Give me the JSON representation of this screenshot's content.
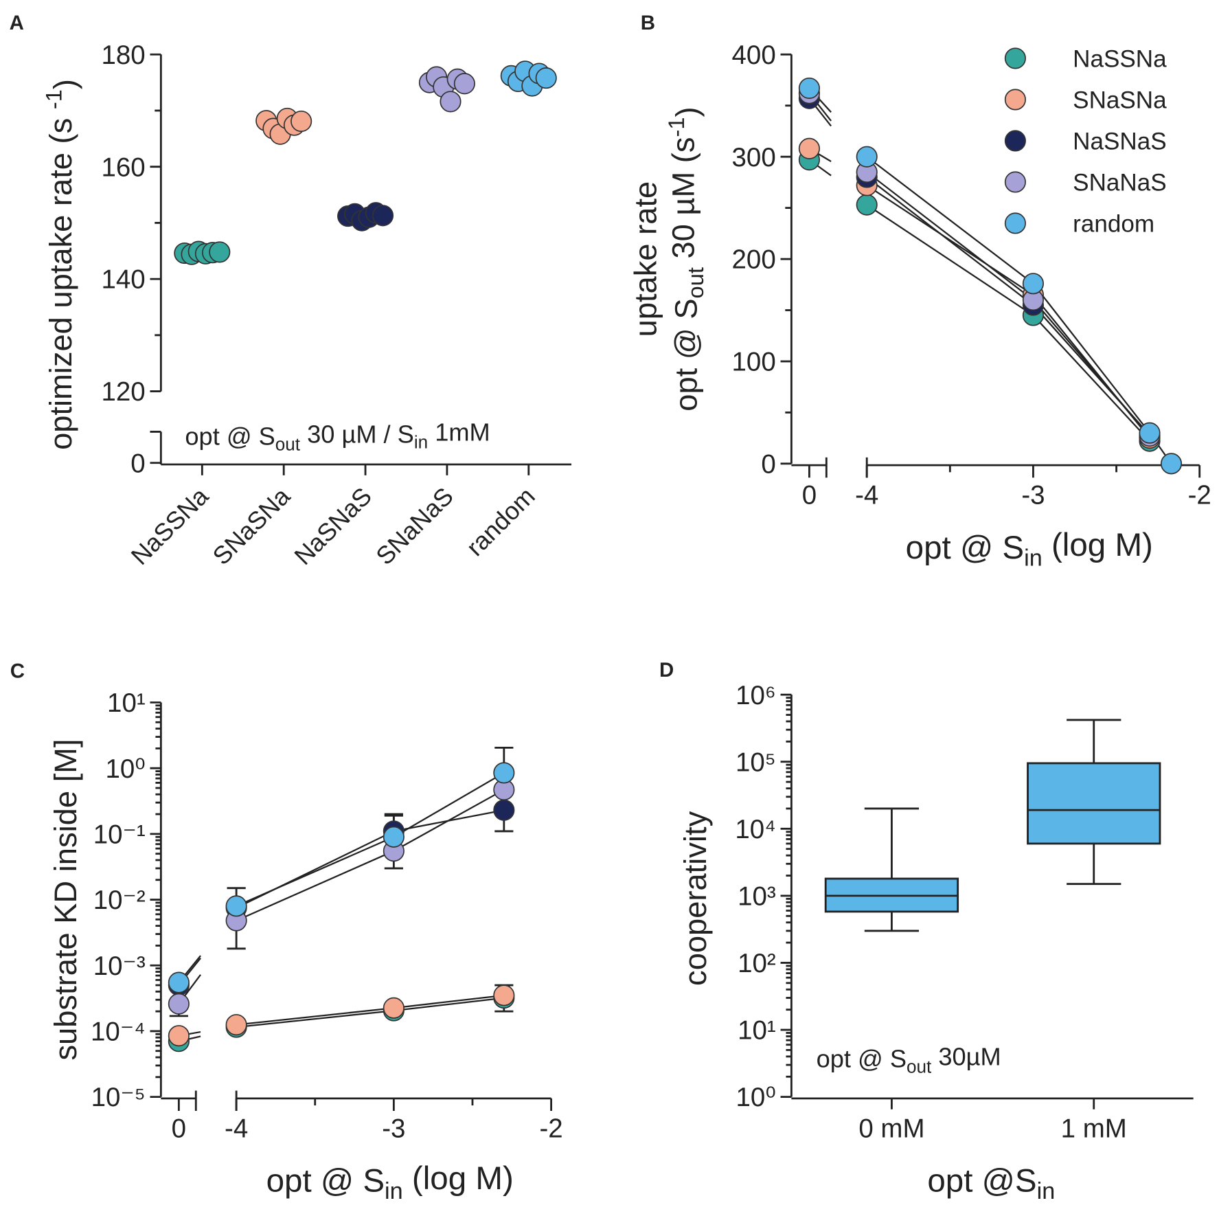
{
  "chart_data": [
    {
      "type": "strip",
      "label": "A",
      "categories": [
        "NaSSNa",
        "SNaSNa",
        "NaSNaS",
        "SNaNaS",
        "random"
      ],
      "colors": [
        "#35a69b",
        "#f4a88e",
        "#1d2659",
        "#a6a1d6",
        "#5bb5e6"
      ],
      "values": [
        [
          144.6,
          144.4,
          144.9,
          144.5,
          144.7,
          144.8
        ],
        [
          168.2,
          166.8,
          165.8,
          168.6,
          167.4,
          168.1
        ],
        [
          151.2,
          151.6,
          150.4,
          151.0,
          151.8,
          151.3
        ],
        [
          175.0,
          176.0,
          174.2,
          171.6,
          175.6,
          174.8
        ],
        [
          176.2,
          175.2,
          177.0,
          174.4,
          176.6,
          175.8
        ]
      ],
      "ylim": [
        120,
        180
      ],
      "yticks": [
        120,
        140,
        160,
        180
      ],
      "yminor": [
        130,
        150,
        170
      ],
      "lower_yticks": [
        0
      ],
      "ylabel": [
        "optimized uptake rate (s ",
        {
          "sup": "-1"
        },
        ")"
      ],
      "annotation": [
        "opt @ S",
        {
          "sub": "out"
        },
        " 30 µM / S",
        {
          "sub": "in"
        },
        " 1mM"
      ]
    },
    {
      "type": "line",
      "label": "B",
      "log_y": false,
      "series": [
        {
          "name": "NaSSNa",
          "color": "#35a69b",
          "zero_value": 297,
          "x": [
            -4,
            -3,
            -2.3
          ],
          "values": [
            253,
            145,
            22
          ]
        },
        {
          "name": "SNaSNa",
          "color": "#f4a88e",
          "zero_value": 308,
          "x": [
            -4,
            -3,
            -2.3
          ],
          "values": [
            272,
            165,
            25
          ]
        },
        {
          "name": "NaSNaS",
          "color": "#1d2659",
          "zero_value": 357,
          "x": [
            -4,
            -3,
            -2.3
          ],
          "values": [
            280,
            155,
            28
          ]
        },
        {
          "name": "SNaNaS",
          "color": "#a6a1d6",
          "zero_value": 362,
          "x": [
            -4,
            -3,
            -2.3
          ],
          "values": [
            285,
            160,
            27
          ]
        },
        {
          "name": "random",
          "color": "#5bb5e6",
          "zero_value": 367,
          "x": [
            -4,
            -3,
            -2.3,
            -2.17
          ],
          "values": [
            300,
            176,
            30,
            0
          ]
        }
      ],
      "ylim": [
        0,
        400
      ],
      "yticks": [
        0,
        100,
        200,
        300,
        400
      ],
      "yminor": [
        50,
        150,
        250,
        350
      ],
      "xlim": [
        -4,
        -2
      ],
      "xticks": [
        -4,
        -3,
        -2
      ],
      "xminor": [
        -3.5,
        -2.5
      ],
      "zero_xtick": 0,
      "ylabel": [
        [
          "uptake rate"
        ],
        [
          "opt @ S",
          {
            "sub": "out"
          },
          " 30 µM (s",
          {
            "sup": "-1"
          },
          ")"
        ]
      ],
      "xlabel": [
        "opt @ S",
        {
          "sub": "in"
        },
        " (log M)"
      ],
      "legend": "upper right"
    },
    {
      "type": "line",
      "label": "C",
      "log_y": true,
      "series": [
        {
          "name": "NaSSNa",
          "color": "#35a69b",
          "zero_value": 7e-05,
          "x": [
            -4,
            -3,
            -2.3
          ],
          "values": [
            0.000115,
            0.000205,
            0.00032
          ]
        },
        {
          "name": "SNaSNa",
          "color": "#f4a88e",
          "zero_value": 8.5e-05,
          "x": [
            -4,
            -3,
            -2.3
          ],
          "values": [
            0.000125,
            0.000225,
            0.00035
          ],
          "err_minus": [
            null,
            null,
            0.00015
          ],
          "err_plus": [
            null,
            null,
            0.00015
          ]
        },
        {
          "name": "NaSNaS",
          "color": "#1d2659",
          "zero_value": 0.0005,
          "x": [
            -4,
            -3,
            -2.3
          ],
          "values": [
            0.0075,
            0.11,
            0.23
          ],
          "err_minus": [
            null,
            null,
            0.12
          ],
          "err_plus": [
            null,
            0.09,
            null
          ]
        },
        {
          "name": "SNaNaS",
          "color": "#a6a1d6",
          "zero_value": 0.00026,
          "zero_err_minus": 9e-05,
          "x": [
            -4,
            -3,
            -2.3
          ],
          "values": [
            0.0048,
            0.055,
            0.47
          ],
          "err_minus": [
            0.003,
            0.025,
            null
          ],
          "err_plus": [
            null,
            null,
            null
          ]
        },
        {
          "name": "random",
          "color": "#5bb5e6",
          "zero_value": 0.00055,
          "x": [
            -4,
            -3,
            -2.3
          ],
          "values": [
            0.008,
            0.09,
            0.85
          ],
          "err_minus": [
            null,
            null,
            null
          ],
          "err_plus": [
            0.007,
            0.1,
            1.2
          ]
        }
      ],
      "ylim": [
        1e-05,
        10
      ],
      "yticks": [
        {
          "value": 1e-05,
          "label": "10⁻⁵"
        },
        {
          "value": 0.0001,
          "label": "10⁻⁴"
        },
        {
          "value": 0.001,
          "label": "10⁻³"
        },
        {
          "value": 0.01,
          "label": "10⁻²"
        },
        {
          "value": 0.1,
          "label": "10⁻¹"
        },
        {
          "value": 1,
          "label": "10⁰"
        },
        {
          "value": 10,
          "label": "10¹"
        }
      ],
      "xlim": [
        -4,
        -2
      ],
      "xticks": [
        -4,
        -3,
        -2
      ],
      "xminor": [
        -3.5,
        -2.5
      ],
      "zero_xtick": 0,
      "ylabel": [
        [
          "substrate KD inside [M]"
        ]
      ],
      "xlabel": [
        "opt @ S",
        {
          "sub": "in"
        },
        " (log M)"
      ]
    },
    {
      "type": "box",
      "label": "D",
      "log_y": true,
      "categories": [
        "0 mM",
        "1 mM"
      ],
      "color": "#5bb5e6",
      "boxes": [
        {
          "min": 300,
          "q1": 580,
          "median": 1000,
          "q3": 1800,
          "max": 20000
        },
        {
          "min": 1500,
          "q1": 6000,
          "median": 19000,
          "q3": 95000,
          "max": 420000
        }
      ],
      "ylim": [
        1,
        1000000
      ],
      "yticks": [
        {
          "value": 1,
          "label": "10⁰"
        },
        {
          "value": 10,
          "label": "10¹"
        },
        {
          "value": 100,
          "label": "10²"
        },
        {
          "value": 1000,
          "label": "10³"
        },
        {
          "value": 10000,
          "label": "10⁴"
        },
        {
          "value": 100000,
          "label": "10⁵"
        },
        {
          "value": 1000000,
          "label": "10⁶"
        }
      ],
      "ylabel": [
        [
          "cooperativity"
        ]
      ],
      "xlabel": [
        "opt @S",
        {
          "sub": "in"
        }
      ],
      "annotation": [
        "opt @ S",
        {
          "sub": "out"
        },
        " 30µM"
      ]
    }
  ]
}
